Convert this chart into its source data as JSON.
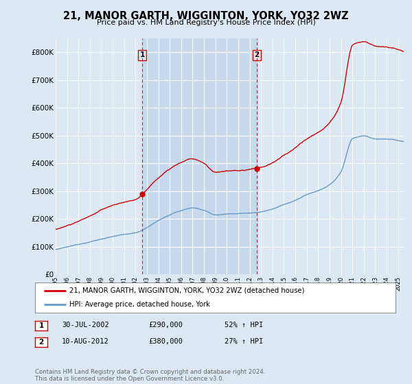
{
  "title": "21, MANOR GARTH, WIGGINTON, YORK, YO32 2WZ",
  "subtitle": "Price paid vs. HM Land Registry's House Price Index (HPI)",
  "background_color": "#dce9f5",
  "plot_bg_color": "#dce9f5",
  "shade_color": "#c5d8ee",
  "sale1_t": 2002.58,
  "sale1_p": 290000,
  "sale2_t": 2012.61,
  "sale2_p": 380000,
  "legend_line1": "21, MANOR GARTH, WIGGINTON, YORK, YO32 2WZ (detached house)",
  "legend_line2": "HPI: Average price, detached house, York",
  "sale1_label": "30-JUL-2002",
  "sale1_price": "£290,000",
  "sale1_hpi": "52% ↑ HPI",
  "sale2_label": "10-AUG-2012",
  "sale2_price": "£380,000",
  "sale2_hpi": "27% ↑ HPI",
  "footer": "Contains HM Land Registry data © Crown copyright and database right 2024.\nThis data is licensed under the Open Government Licence v3.0.",
  "ylim": [
    0,
    850000
  ],
  "xlim_start": 1995,
  "xlim_end": 2025.5,
  "red_color": "#cc0000",
  "blue_color": "#6699cc"
}
